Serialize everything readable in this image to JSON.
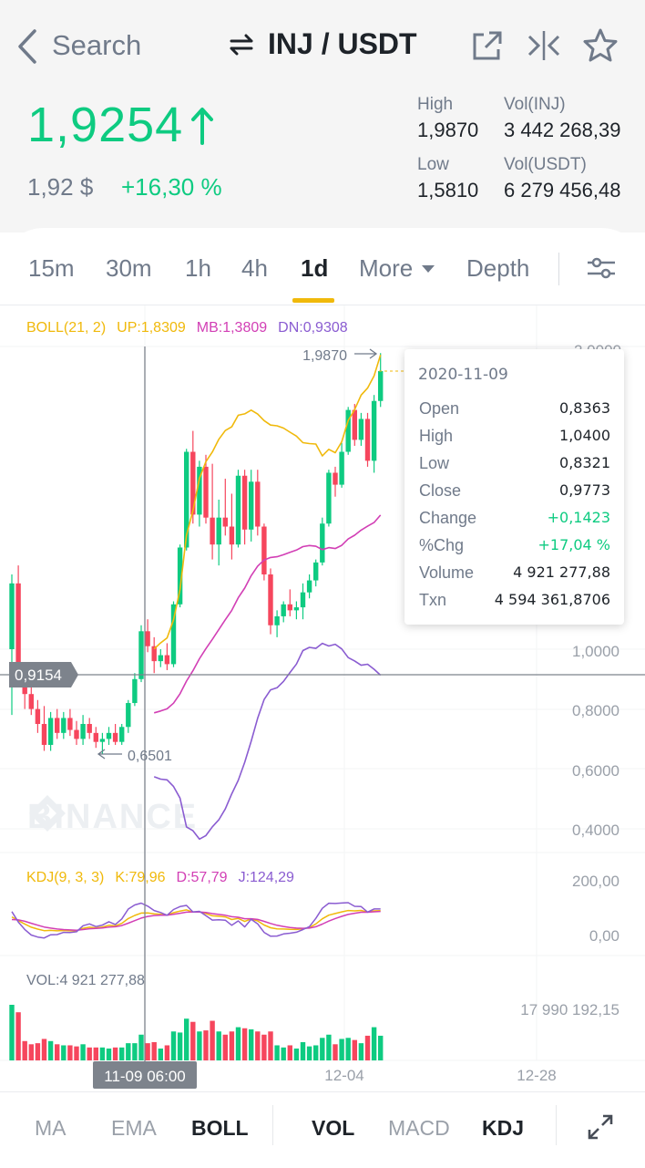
{
  "nav": {
    "back_label": "Search",
    "pair": "INJ / USDT",
    "icons": [
      "back-arrow-icon",
      "swap-icon",
      "share-icon",
      "compare-icon",
      "star-icon"
    ]
  },
  "ticker": {
    "last_price": "1,9254",
    "fiat_price": "1,92 $",
    "change_pct": "+16,30 %",
    "high_label": "High",
    "high_value": "1,9870",
    "low_label": "Low",
    "low_value": "1,5810",
    "vol_base_label": "Vol(INJ)",
    "vol_base_value": "3 442 268,39",
    "vol_quote_label": "Vol(USDT)",
    "vol_quote_value": "6 279 456,48",
    "colors": {
      "up": "#0ecb81",
      "down": "#f6465d"
    }
  },
  "tabs": [
    "15m",
    "30m",
    "1h",
    "4h",
    "1d",
    "More",
    "Depth"
  ],
  "active_tab": "1d",
  "chart": {
    "boll": {
      "label": "BOLL(21, 2)",
      "up": "UP:1,8309",
      "mb": "MB:1,3809",
      "dn": "DN:0,9308"
    },
    "price_axis": [
      "2,0000",
      "1,0000",
      "0,8000",
      "0,6000",
      "0,4000"
    ],
    "max_marker": "1,9870",
    "min_marker": "0,6501",
    "crosshair_price": "0,9154",
    "crosshair_time": "11-09 06:00",
    "watermark": "BINANCE",
    "kdj": {
      "label": "KDJ(9, 3, 3)",
      "k": "K:79,96",
      "d": "D:57,79",
      "j": "J:124,29",
      "axis": [
        "200,00",
        "0,00"
      ]
    },
    "vol": {
      "label": "VOL:4 921 277,88",
      "axis": "17 990 192,15"
    },
    "time_axis": [
      "12-04",
      "12-28"
    ]
  },
  "tooltip": {
    "date": "2020-11-09",
    "rows": [
      {
        "k": "Open",
        "v": "0,8363"
      },
      {
        "k": "High",
        "v": "1,0400"
      },
      {
        "k": "Low",
        "v": "0,8321"
      },
      {
        "k": "Close",
        "v": "0,9773"
      },
      {
        "k": "Change",
        "v": "+0,1423"
      },
      {
        "k": "%Chg",
        "v": "+17,04 %"
      },
      {
        "k": "Volume",
        "v": "4 921 277,88"
      },
      {
        "k": "Txn",
        "v": "4 594 361,8706"
      }
    ]
  },
  "bottom": {
    "main_indicators": [
      "MA",
      "EMA",
      "BOLL"
    ],
    "active_main": "BOLL",
    "sub_indicators": [
      "VOL",
      "MACD",
      "KDJ"
    ],
    "active_sub": [
      "VOL",
      "KDJ"
    ]
  },
  "candles": [
    {
      "o": 1.0,
      "h": 1.25,
      "l": 0.78,
      "c": 1.22
    },
    {
      "o": 1.22,
      "h": 1.28,
      "l": 0.88,
      "c": 0.9
    },
    {
      "o": 0.9,
      "h": 0.93,
      "l": 0.8,
      "c": 0.85
    },
    {
      "o": 0.85,
      "h": 0.88,
      "l": 0.78,
      "c": 0.8
    },
    {
      "o": 0.8,
      "h": 0.83,
      "l": 0.72,
      "c": 0.75
    },
    {
      "o": 0.75,
      "h": 0.81,
      "l": 0.66,
      "c": 0.68
    },
    {
      "o": 0.68,
      "h": 0.79,
      "l": 0.66,
      "c": 0.77
    },
    {
      "o": 0.77,
      "h": 0.8,
      "l": 0.7,
      "c": 0.72
    },
    {
      "o": 0.72,
      "h": 0.79,
      "l": 0.7,
      "c": 0.77
    },
    {
      "o": 0.77,
      "h": 0.8,
      "l": 0.71,
      "c": 0.73
    },
    {
      "o": 0.73,
      "h": 0.76,
      "l": 0.68,
      "c": 0.7
    },
    {
      "o": 0.7,
      "h": 0.78,
      "l": 0.68,
      "c": 0.75
    },
    {
      "o": 0.75,
      "h": 0.77,
      "l": 0.7,
      "c": 0.72
    },
    {
      "o": 0.72,
      "h": 0.74,
      "l": 0.67,
      "c": 0.69
    },
    {
      "o": 0.69,
      "h": 0.72,
      "l": 0.65,
      "c": 0.7
    },
    {
      "o": 0.7,
      "h": 0.74,
      "l": 0.68,
      "c": 0.72
    },
    {
      "o": 0.72,
      "h": 0.75,
      "l": 0.68,
      "c": 0.69
    },
    {
      "o": 0.69,
      "h": 0.75,
      "l": 0.68,
      "c": 0.74
    },
    {
      "o": 0.74,
      "h": 0.83,
      "l": 0.72,
      "c": 0.82
    },
    {
      "o": 0.82,
      "h": 0.92,
      "l": 0.81,
      "c": 0.9
    },
    {
      "o": 0.9,
      "h": 1.08,
      "l": 0.89,
      "c": 1.06
    },
    {
      "o": 1.06,
      "h": 1.1,
      "l": 0.99,
      "c": 1.01
    },
    {
      "o": 1.01,
      "h": 1.04,
      "l": 0.92,
      "c": 0.96
    },
    {
      "o": 0.96,
      "h": 1.0,
      "l": 0.94,
      "c": 0.98
    },
    {
      "o": 0.98,
      "h": 1.02,
      "l": 0.93,
      "c": 0.95
    },
    {
      "o": 0.95,
      "h": 1.16,
      "l": 0.94,
      "c": 1.15
    },
    {
      "o": 1.15,
      "h": 1.35,
      "l": 1.14,
      "c": 1.34
    },
    {
      "o": 1.34,
      "h": 1.67,
      "l": 1.33,
      "c": 1.66
    },
    {
      "o": 1.66,
      "h": 1.73,
      "l": 1.42,
      "c": 1.45
    },
    {
      "o": 1.45,
      "h": 1.63,
      "l": 1.41,
      "c": 1.61
    },
    {
      "o": 1.61,
      "h": 1.65,
      "l": 1.42,
      "c": 1.44
    },
    {
      "o": 1.44,
      "h": 1.62,
      "l": 1.3,
      "c": 1.35
    },
    {
      "o": 1.35,
      "h": 1.5,
      "l": 1.28,
      "c": 1.44
    },
    {
      "o": 1.44,
      "h": 1.57,
      "l": 1.38,
      "c": 1.41
    },
    {
      "o": 1.41,
      "h": 1.52,
      "l": 1.3,
      "c": 1.35
    },
    {
      "o": 1.35,
      "h": 1.6,
      "l": 1.34,
      "c": 1.58
    },
    {
      "o": 1.58,
      "h": 1.6,
      "l": 1.35,
      "c": 1.4
    },
    {
      "o": 1.4,
      "h": 1.6,
      "l": 1.36,
      "c": 1.56
    },
    {
      "o": 1.56,
      "h": 1.6,
      "l": 1.38,
      "c": 1.41
    },
    {
      "o": 1.41,
      "h": 1.42,
      "l": 1.23,
      "c": 1.25
    },
    {
      "o": 1.25,
      "h": 1.27,
      "l": 1.05,
      "c": 1.08
    },
    {
      "o": 1.08,
      "h": 1.13,
      "l": 1.04,
      "c": 1.11
    },
    {
      "o": 1.11,
      "h": 1.16,
      "l": 1.09,
      "c": 1.15
    },
    {
      "o": 1.15,
      "h": 1.2,
      "l": 1.11,
      "c": 1.13
    },
    {
      "o": 1.13,
      "h": 1.16,
      "l": 1.1,
      "c": 1.14
    },
    {
      "o": 1.14,
      "h": 1.22,
      "l": 1.1,
      "c": 1.19
    },
    {
      "o": 1.19,
      "h": 1.25,
      "l": 1.17,
      "c": 1.23
    },
    {
      "o": 1.23,
      "h": 1.3,
      "l": 1.21,
      "c": 1.29
    },
    {
      "o": 1.29,
      "h": 1.44,
      "l": 1.28,
      "c": 1.42
    },
    {
      "o": 1.42,
      "h": 1.6,
      "l": 1.41,
      "c": 1.59
    },
    {
      "o": 1.59,
      "h": 1.61,
      "l": 1.51,
      "c": 1.55
    },
    {
      "o": 1.55,
      "h": 1.69,
      "l": 1.54,
      "c": 1.66
    },
    {
      "o": 1.66,
      "h": 1.81,
      "l": 1.65,
      "c": 1.8
    },
    {
      "o": 1.8,
      "h": 1.82,
      "l": 1.68,
      "c": 1.7
    },
    {
      "o": 1.7,
      "h": 1.79,
      "l": 1.68,
      "c": 1.77
    },
    {
      "o": 1.77,
      "h": 1.79,
      "l": 1.61,
      "c": 1.63
    },
    {
      "o": 1.63,
      "h": 1.85,
      "l": 1.59,
      "c": 1.83
    },
    {
      "o": 1.83,
      "h": 1.99,
      "l": 1.81,
      "c": 1.93
    }
  ]
}
